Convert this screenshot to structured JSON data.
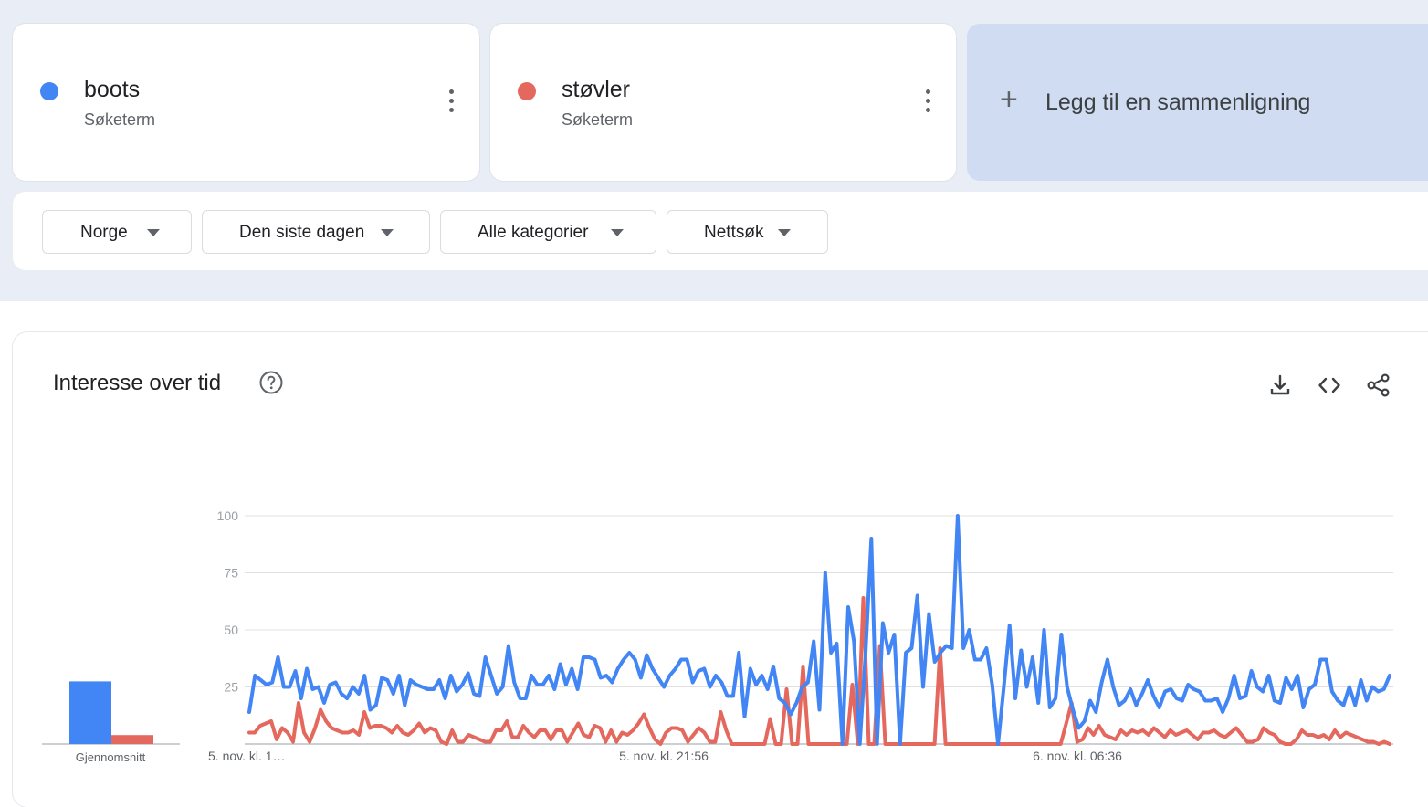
{
  "terms": [
    {
      "name": "boots",
      "subtitle": "Søketerm",
      "color": "#4285f4"
    },
    {
      "name": "støvler",
      "subtitle": "Søketerm",
      "color": "#e5685e"
    }
  ],
  "add_comparison": {
    "label": "Legg til en sammenligning",
    "icon": "plus-icon"
  },
  "filters": [
    {
      "label": "Norge"
    },
    {
      "label": "Den siste dagen"
    },
    {
      "label": "Alle kategorier"
    },
    {
      "label": "Nettsøk"
    }
  ],
  "panel": {
    "title": "Interesse over tid",
    "icons": [
      "help-icon",
      "download-icon",
      "embed-code-icon",
      "share-icon"
    ]
  },
  "chart_data": [
    {
      "type": "bar",
      "categories": [
        "boots",
        "støvler"
      ],
      "values": [
        28,
        4
      ],
      "colors": [
        "#4285f4",
        "#e5685e"
      ],
      "xlabel": "Gjennomsnitt"
    },
    {
      "type": "line",
      "x_tick_labels": [
        "5. nov. kl. 1…",
        "5. nov. kl. 21:56",
        "6. nov. kl. 06:36"
      ],
      "y_ticks": [
        25,
        50,
        75,
        100
      ],
      "ylim": [
        0,
        100
      ],
      "grid": true,
      "series": [
        {
          "name": "boots",
          "color": "#4285f4",
          "values": [
            14,
            30,
            28,
            26,
            27,
            38,
            25,
            25,
            32,
            20,
            33,
            24,
            25,
            18,
            26,
            27,
            22,
            20,
            25,
            22,
            30,
            15,
            17,
            29,
            28,
            22,
            30,
            17,
            28,
            26,
            25,
            24,
            24,
            28,
            20,
            30,
            23,
            26,
            31,
            22,
            21,
            38,
            30,
            22,
            25,
            43,
            27,
            20,
            20,
            30,
            26,
            26,
            30,
            24,
            35,
            26,
            33,
            24,
            38,
            38,
            37,
            29,
            30,
            27,
            33,
            37,
            40,
            37,
            29,
            39,
            33,
            29,
            25,
            30,
            33,
            37,
            37,
            27,
            32,
            33,
            25,
            30,
            27,
            21,
            21,
            40,
            12,
            33,
            26,
            30,
            24,
            34,
            20,
            18,
            13,
            18,
            25,
            27,
            45,
            15,
            75,
            40,
            44,
            0,
            60,
            45,
            0,
            40,
            90,
            0,
            53,
            40,
            48,
            0,
            40,
            42,
            65,
            25,
            57,
            36,
            40,
            43,
            42,
            100,
            42,
            50,
            37,
            37,
            42,
            26,
            0,
            25,
            52,
            20,
            41,
            25,
            38,
            18,
            50,
            16,
            20,
            48,
            25,
            15,
            7,
            10,
            19,
            14,
            27,
            37,
            25,
            17,
            19,
            24,
            17,
            22,
            28,
            21,
            16,
            23,
            24,
            20,
            19,
            26,
            24,
            23,
            19,
            19,
            20,
            14,
            20,
            30,
            20,
            21,
            32,
            25,
            23,
            30,
            19,
            18,
            29,
            24,
            30,
            16,
            24,
            26,
            37,
            37,
            23,
            19,
            17,
            25,
            17,
            28,
            19,
            25,
            23,
            24,
            30
          ]
        },
        {
          "name": "støvler",
          "color": "#e5685e",
          "values": [
            5,
            5,
            8,
            9,
            10,
            2,
            7,
            5,
            1,
            18,
            5,
            1,
            7,
            15,
            10,
            7,
            6,
            5,
            5,
            6,
            4,
            14,
            7,
            8,
            8,
            7,
            5,
            8,
            5,
            4,
            6,
            9,
            5,
            7,
            6,
            1,
            0,
            6,
            1,
            1,
            4,
            3,
            2,
            1,
            1,
            6,
            6,
            10,
            3,
            3,
            8,
            5,
            3,
            6,
            6,
            2,
            6,
            6,
            1,
            5,
            9,
            4,
            3,
            8,
            7,
            1,
            6,
            1,
            5,
            4,
            6,
            9,
            13,
            7,
            2,
            0,
            5,
            7,
            7,
            6,
            1,
            4,
            7,
            5,
            1,
            1,
            14,
            6,
            0,
            0,
            0,
            0,
            0,
            0,
            0,
            11,
            0,
            0,
            24,
            0,
            0,
            34,
            0,
            0,
            0,
            0,
            0,
            0,
            0,
            0,
            26,
            0,
            64,
            0,
            0,
            43,
            0,
            0,
            0,
            0,
            0,
            0,
            0,
            0,
            0,
            0,
            42,
            0,
            0,
            0,
            0,
            0,
            0,
            0,
            0,
            0,
            0,
            0,
            0,
            0,
            0,
            0,
            0,
            0,
            0,
            0,
            0,
            0,
            0,
            9,
            18,
            1,
            2,
            7,
            4,
            8,
            4,
            3,
            2,
            6,
            4,
            6,
            5,
            6,
            4,
            7,
            5,
            3,
            6,
            4,
            5,
            6,
            4,
            2,
            5,
            5,
            6,
            4,
            3,
            5,
            7,
            4,
            1,
            1,
            2,
            7,
            5,
            4,
            1,
            0,
            0,
            2,
            6,
            4,
            4,
            3,
            4,
            2,
            6,
            3,
            5,
            4,
            3,
            2,
            1,
            1,
            0,
            1,
            0
          ]
        }
      ]
    }
  ]
}
